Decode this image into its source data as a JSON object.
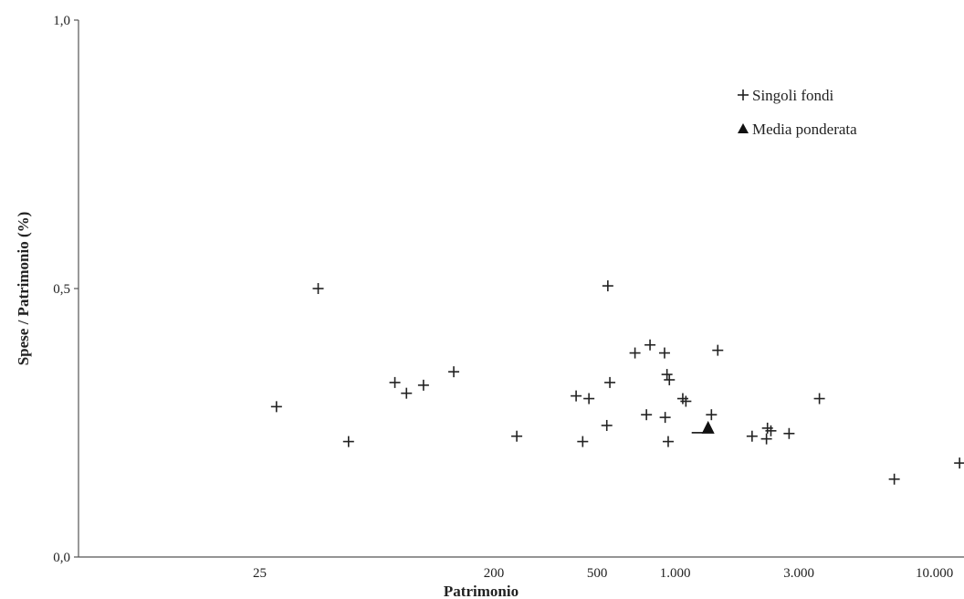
{
  "chart_data": {
    "type": "scatter",
    "title": "",
    "xlabel": "Patrimonio",
    "ylabel": "Spese / Patrimonio (%)",
    "x_scale": "log",
    "xlim": [
      5,
      13000
    ],
    "ylim": [
      0,
      1.0
    ],
    "y_ticks": [
      {
        "value": 0.0,
        "label": "0,0"
      },
      {
        "value": 0.5,
        "label": "0,5"
      },
      {
        "value": 1.0,
        "label": "1,0"
      }
    ],
    "x_ticks": [
      {
        "value": 25,
        "label": "25"
      },
      {
        "value": 200,
        "label": "200"
      },
      {
        "value": 500,
        "label": "500"
      },
      {
        "value": 1000,
        "label": "1.000"
      },
      {
        "value": 3000,
        "label": "3.000"
      },
      {
        "value": 10000,
        "label": "10.000"
      }
    ],
    "grid": false,
    "legend_position": "top-right",
    "series": [
      {
        "name": "Singoli fondi",
        "marker": "plus",
        "color": "#222222",
        "points": [
          {
            "x": 29,
            "y": 0.28
          },
          {
            "x": 42,
            "y": 0.5
          },
          {
            "x": 55,
            "y": 0.215
          },
          {
            "x": 83,
            "y": 0.325
          },
          {
            "x": 92,
            "y": 0.305
          },
          {
            "x": 107,
            "y": 0.32
          },
          {
            "x": 140,
            "y": 0.345
          },
          {
            "x": 245,
            "y": 0.225
          },
          {
            "x": 415,
            "y": 0.3
          },
          {
            "x": 440,
            "y": 0.215
          },
          {
            "x": 465,
            "y": 0.295
          },
          {
            "x": 545,
            "y": 0.245
          },
          {
            "x": 550,
            "y": 0.505
          },
          {
            "x": 560,
            "y": 0.325
          },
          {
            "x": 700,
            "y": 0.38
          },
          {
            "x": 775,
            "y": 0.265
          },
          {
            "x": 800,
            "y": 0.395
          },
          {
            "x": 910,
            "y": 0.38
          },
          {
            "x": 915,
            "y": 0.26
          },
          {
            "x": 930,
            "y": 0.34
          },
          {
            "x": 940,
            "y": 0.215
          },
          {
            "x": 950,
            "y": 0.33
          },
          {
            "x": 1070,
            "y": 0.295
          },
          {
            "x": 1100,
            "y": 0.29
          },
          {
            "x": 1380,
            "y": 0.265
          },
          {
            "x": 1460,
            "y": 0.385
          },
          {
            "x": 1980,
            "y": 0.225
          },
          {
            "x": 2250,
            "y": 0.22
          },
          {
            "x": 2270,
            "y": 0.24
          },
          {
            "x": 2340,
            "y": 0.235
          },
          {
            "x": 2750,
            "y": 0.23
          },
          {
            "x": 3600,
            "y": 0.295
          },
          {
            "x": 7000,
            "y": 0.145
          },
          {
            "x": 12500,
            "y": 0.175
          }
        ]
      },
      {
        "name": "Media ponderata",
        "marker": "triangle",
        "color": "#111111",
        "points": [
          {
            "x": 1340,
            "y": 0.24
          }
        ]
      }
    ]
  }
}
